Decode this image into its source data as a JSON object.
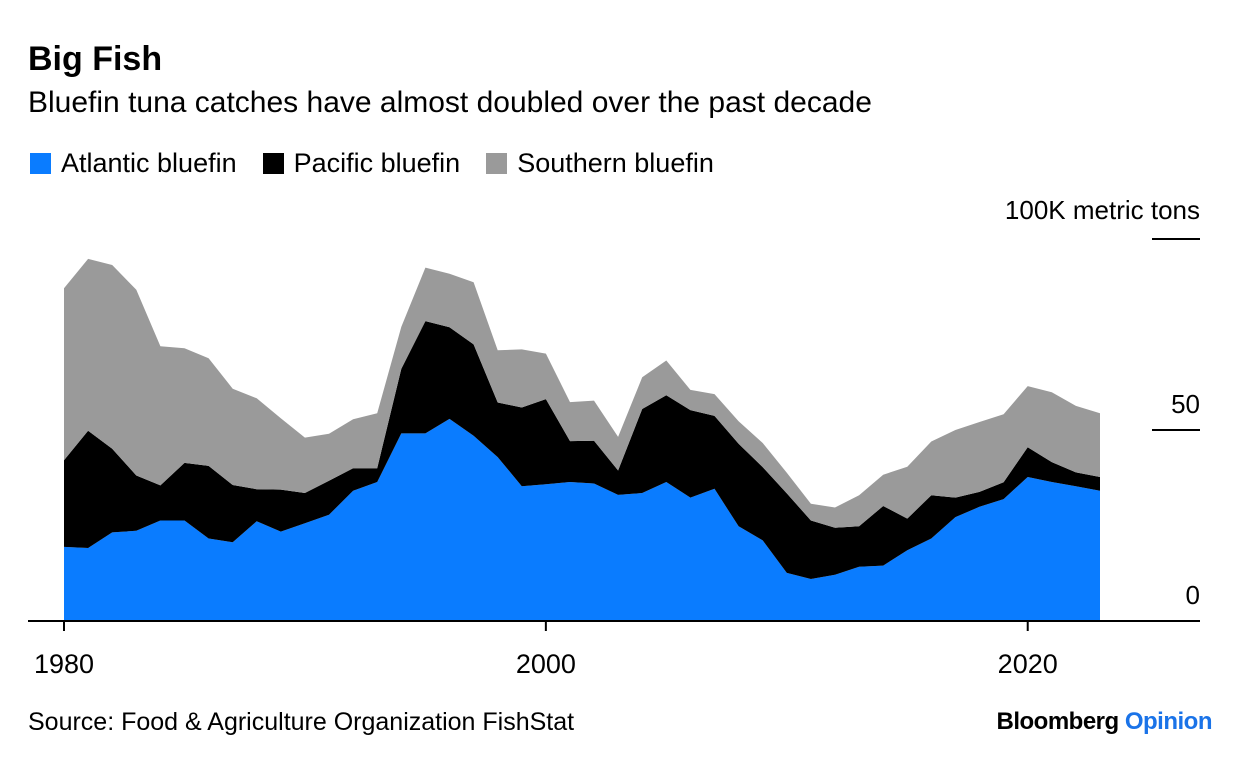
{
  "title": "Big Fish",
  "subtitle": "Bluefin tuna catches have almost doubled over the past decade",
  "source": "Source: Food & Agriculture Organization FishStat",
  "brand": {
    "name": "Bloomberg",
    "suffix": "Opinion",
    "name_color": "#000000",
    "suffix_color": "#1a73e8"
  },
  "chart_data": {
    "type": "area",
    "stacked": true,
    "unit_label": "100K metric tons",
    "x": [
      1980,
      1981,
      1982,
      1983,
      1984,
      1985,
      1986,
      1987,
      1988,
      1989,
      1990,
      1991,
      1992,
      1993,
      1994,
      1995,
      1996,
      1997,
      1998,
      1999,
      2000,
      2001,
      2002,
      2003,
      2004,
      2005,
      2006,
      2007,
      2008,
      2009,
      2010,
      2011,
      2012,
      2013,
      2014,
      2015,
      2016,
      2017,
      2018,
      2019,
      2020,
      2021,
      2022,
      2023
    ],
    "series": [
      {
        "name": "Atlantic bluefin",
        "color": "#0a7cff",
        "values": [
          19.4,
          19.1,
          23.2,
          23.6,
          26.3,
          26.3,
          21.6,
          20.6,
          26.1,
          23.4,
          25.6,
          27.8,
          34.1,
          36.4,
          49.1,
          49.1,
          52.9,
          48.5,
          42.9,
          35.3,
          35.8,
          36.4,
          36.0,
          33.0,
          33.5,
          36.4,
          32.3,
          34.6,
          24.8,
          21.1,
          12.6,
          11.0,
          12.1,
          14.2,
          14.5,
          18.5,
          21.6,
          27.2,
          29.9,
          31.9,
          37.7,
          36.4,
          35.3,
          34.1
        ]
      },
      {
        "name": "Pacific bluefin",
        "color": "#000000",
        "values": [
          22.7,
          30.7,
          21.9,
          14.5,
          9.2,
          15.1,
          19.0,
          15.0,
          8.4,
          11.0,
          7.9,
          8.9,
          5.9,
          3.6,
          16.9,
          29.4,
          24.0,
          23.9,
          14.3,
          20.6,
          22.3,
          10.7,
          11.2,
          6.4,
          22.0,
          22.7,
          22.9,
          19.1,
          21.6,
          19.2,
          20.8,
          15.3,
          12.3,
          10.6,
          15.6,
          8.3,
          11.3,
          5.1,
          3.9,
          4.4,
          7.8,
          5.2,
          3.6,
          3.6
        ]
      },
      {
        "name": "Southern bluefin",
        "color": "#9a9a9a",
        "values": [
          45.0,
          45.0,
          48.1,
          48.6,
          36.4,
          30.0,
          28.2,
          25.2,
          23.8,
          18.7,
          14.5,
          12.3,
          12.8,
          14.4,
          11.0,
          14.0,
          14.0,
          16.3,
          13.7,
          15.2,
          11.9,
          10.2,
          10.5,
          8.8,
          8.3,
          9.1,
          5.3,
          5.7,
          5.9,
          6.3,
          5.4,
          4.4,
          5.3,
          8.1,
          8.2,
          13.6,
          14.1,
          17.7,
          18.3,
          17.8,
          16.0,
          18.3,
          17.4,
          16.7
        ]
      }
    ],
    "ylim": [
      0,
      100
    ],
    "yticks": [
      0,
      50,
      100
    ],
    "ytick_labels": [
      "0",
      "50",
      ""
    ],
    "xlim": [
      1979,
      2027
    ],
    "xticks": [
      1980,
      2000,
      2020
    ],
    "xtick_labels": [
      "1980",
      "2000",
      "2020"
    ],
    "legend_position": "top-left",
    "grid": false
  }
}
